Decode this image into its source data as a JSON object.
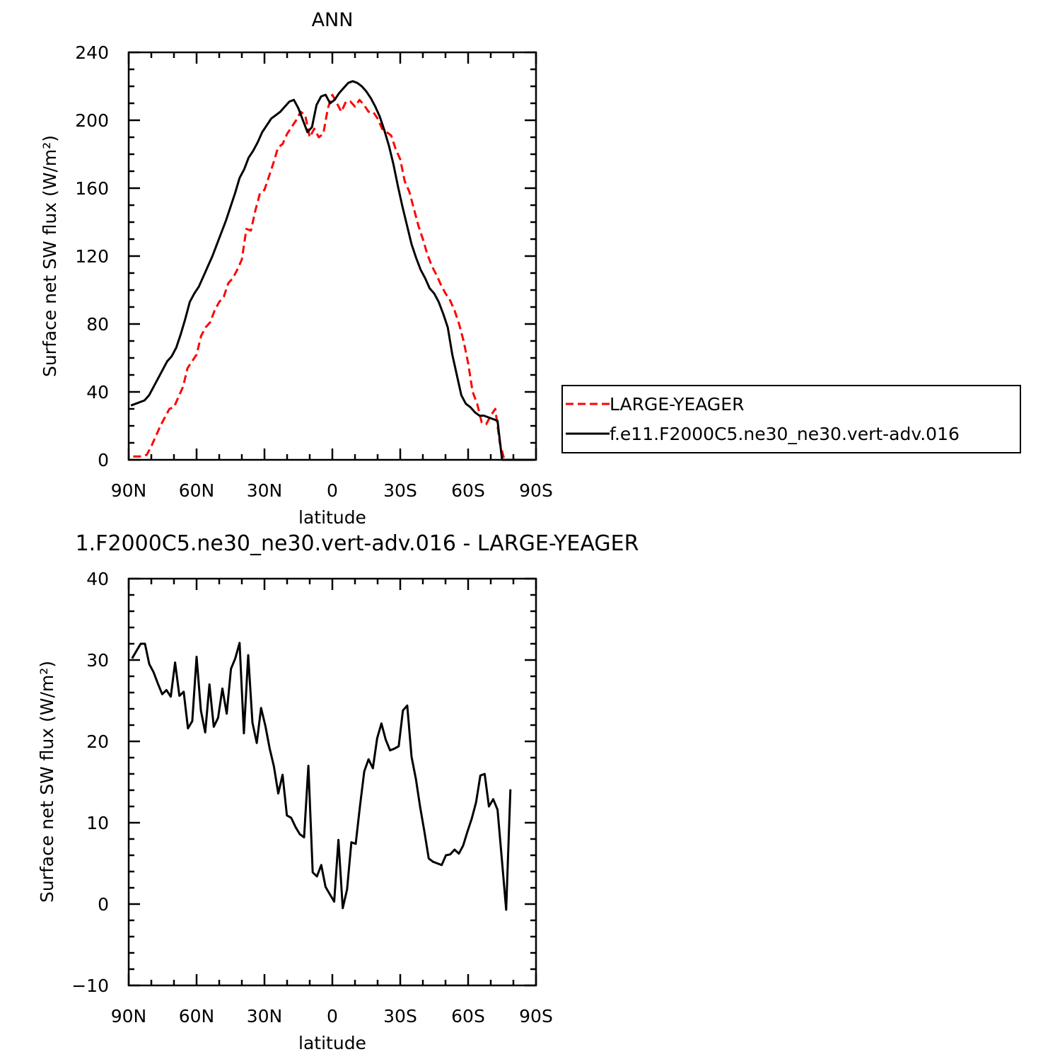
{
  "chart_data": [
    {
      "type": "line",
      "title": "ANN",
      "xlabel": "latitude",
      "ylabel": "Surface net SW flux (W/m²)",
      "xlim": [
        -90,
        90
      ],
      "ylim": [
        0,
        240
      ],
      "xticks": [
        -90,
        -60,
        -30,
        0,
        30,
        60,
        90
      ],
      "xtick_labels": [
        "90N",
        "60N",
        "30N",
        "0",
        "30S",
        "60S",
        "90S"
      ],
      "yticks": [
        0,
        40,
        80,
        120,
        160,
        200,
        240
      ],
      "ytick_labels": [
        "0",
        "40",
        "80",
        "120",
        "160",
        "200",
        "240"
      ],
      "grid": false,
      "legend_position": "right",
      "series": [
        {
          "name": "LARGE-YEAGER",
          "color": "#ff0000",
          "dash": "dashed",
          "x": [
            -88,
            -86,
            -84,
            -82,
            -80,
            -78,
            -76,
            -74,
            -72,
            -70,
            -68,
            -66,
            -64,
            -62,
            -60,
            -58,
            -56,
            -54,
            -52,
            -50,
            -48,
            -46,
            -44,
            -42,
            -40,
            -38,
            -36,
            -34,
            -32,
            -30,
            -28,
            -26,
            -24,
            -22,
            -20,
            -18,
            -16,
            -14,
            -12,
            -10,
            -8,
            -6,
            -4,
            -2,
            0,
            2,
            4,
            6,
            8,
            10,
            12,
            14,
            16,
            18,
            20,
            22,
            24,
            26,
            28,
            30,
            32,
            34,
            36,
            38,
            40,
            42,
            44,
            46,
            48,
            50,
            52,
            54,
            56,
            58,
            60,
            62,
            64,
            66,
            68,
            70,
            72,
            74,
            76,
            78,
            80
          ],
          "y": [
            2,
            2,
            2,
            3,
            8,
            14,
            20,
            25,
            30,
            31,
            37,
            43,
            54,
            58,
            62,
            73,
            78,
            81,
            88,
            93,
            96,
            104,
            107,
            112,
            118,
            136,
            135,
            147,
            157,
            159,
            167,
            175,
            184,
            186,
            192,
            196,
            200,
            205,
            203,
            190,
            195,
            190,
            192,
            207,
            215,
            210,
            205,
            211,
            211,
            208,
            212,
            209,
            205,
            205,
            201,
            195,
            193,
            191,
            183,
            177,
            164,
            158,
            148,
            138,
            130,
            121,
            114,
            109,
            103,
            98,
            94,
            88,
            80,
            70,
            57,
            40,
            33,
            22,
            21,
            26,
            30,
            10,
            0,
            0,
            0
          ]
        },
        {
          "name": "f.e11.F2000C5.ne30_ne30.vert-adv.016",
          "color": "#000000",
          "dash": "solid",
          "x": [
            -89,
            -87,
            -85,
            -83,
            -81,
            -79,
            -77,
            -75,
            -73,
            -71,
            -69,
            -67,
            -65,
            -63,
            -61,
            -59,
            -57,
            -55,
            -53,
            -51,
            -49,
            -47,
            -45,
            -43,
            -41,
            -39,
            -37,
            -35,
            -33,
            -31,
            -29,
            -27,
            -25,
            -23,
            -21,
            -19,
            -17,
            -15,
            -13,
            -11,
            -9,
            -7,
            -5,
            -3,
            -1,
            1,
            3,
            5,
            7,
            9,
            11,
            13,
            15,
            17,
            19,
            21,
            23,
            25,
            27,
            29,
            31,
            33,
            35,
            37,
            39,
            41,
            43,
            45,
            47,
            49,
            51,
            53,
            55,
            57,
            59,
            61,
            63,
            65,
            67,
            69,
            71,
            73,
            75,
            77,
            79,
            81,
            83,
            85,
            87,
            89
          ],
          "y": [
            32,
            33,
            34,
            35,
            38,
            43,
            48,
            53,
            58,
            61,
            66,
            74,
            83,
            93,
            98,
            102,
            108,
            114,
            120,
            127,
            134,
            141,
            149,
            157,
            166,
            171,
            178,
            182,
            187,
            193,
            197,
            201,
            203,
            205,
            208,
            211,
            212,
            207,
            200,
            193,
            196,
            209,
            214,
            215,
            210,
            212,
            216,
            219,
            222,
            223,
            222,
            220,
            217,
            213,
            208,
            202,
            194,
            185,
            174,
            161,
            149,
            138,
            127,
            119,
            112,
            107,
            101,
            98,
            93,
            86,
            78,
            62,
            50,
            38,
            33,
            31,
            28,
            26,
            26,
            25,
            24,
            23,
            0,
            0,
            0,
            0,
            0,
            0,
            0,
            0
          ]
        }
      ]
    },
    {
      "type": "line",
      "title": "1.F2000C5.ne30_ne30.vert-adv.016 - LARGE-YEAGER",
      "xlabel": "latitude",
      "ylabel": "Surface net SW flux (W/m²)",
      "xlim": [
        -90,
        90
      ],
      "ylim": [
        -10,
        40
      ],
      "xticks": [
        -90,
        -60,
        -30,
        0,
        30,
        60,
        90
      ],
      "xtick_labels": [
        "90N",
        "60N",
        "30N",
        "0",
        "30S",
        "60S",
        "90S"
      ],
      "yticks": [
        -10,
        0,
        10,
        20,
        30,
        40
      ],
      "ytick_labels": [
        "−10",
        "0",
        "10",
        "20",
        "30",
        "40"
      ],
      "grid": false,
      "series": [
        {
          "color": "#000000",
          "dash": "solid",
          "x": [
            -88.5,
            -86.6,
            -84.7,
            -82.8,
            -80.9,
            -79,
            -77.1,
            -75.2,
            -73.3,
            -71.4,
            -69.5,
            -67.6,
            -65.7,
            -63.8,
            -61.9,
            -60,
            -58.1,
            -56.2,
            -54.3,
            -52.4,
            -50.5,
            -48.6,
            -46.7,
            -44.8,
            -42.9,
            -41,
            -39.1,
            -37.2,
            -35.3,
            -33.4,
            -31.5,
            -29.6,
            -27.7,
            -25.8,
            -23.9,
            -22,
            -20.1,
            -18.2,
            -16.3,
            -14.4,
            -12.5,
            -10.6,
            -8.7,
            -6.8,
            -4.9,
            -3,
            -1.1,
            0.8,
            2.7,
            4.6,
            6.5,
            8.4,
            10.3,
            12.2,
            14.1,
            16,
            17.9,
            19.8,
            21.7,
            23.6,
            25.5,
            27.4,
            29.3,
            31.2,
            33.1,
            35,
            36.9,
            38.8,
            40.7,
            42.6,
            44.5,
            46.4,
            48.3,
            50.2,
            52.1,
            54,
            55.9,
            57.8,
            59.7,
            61.6,
            63.5,
            65.4,
            67.3,
            69.2,
            71.1,
            73,
            74.9,
            76.8,
            78.7
          ],
          "y": [
            30.2,
            31.1,
            32,
            32,
            29.5,
            28.5,
            27.1,
            25.8,
            26.3,
            25.5,
            29.7,
            25.6,
            26.1,
            21.6,
            22.5,
            30.4,
            23.8,
            21.1,
            27,
            21.8,
            22.9,
            26.5,
            23.4,
            28.9,
            30.2,
            32.1,
            21,
            30.6,
            22.3,
            19.8,
            24.1,
            21.9,
            19.1,
            16.9,
            13.6,
            15.9,
            10.9,
            10.6,
            9.5,
            8.6,
            8.2,
            17,
            3.9,
            3.4,
            4.8,
            2.1,
            1.2,
            0.3,
            7.9,
            -0.5,
            1.8,
            7.6,
            7.4,
            12,
            16.3,
            17.8,
            16.7,
            20.4,
            22.2,
            20.2,
            18.9,
            19.1,
            19.4,
            23.8,
            24.4,
            18.1,
            15.4,
            11.9,
            8.9,
            5.6,
            5.2,
            5,
            4.8,
            6,
            6.1,
            6.7,
            6.2,
            7.2,
            8.9,
            10.5,
            12.5,
            15.8,
            16,
            12,
            12.9,
            11.6,
            5.5,
            -0.7,
            14.1
          ]
        }
      ]
    }
  ]
}
